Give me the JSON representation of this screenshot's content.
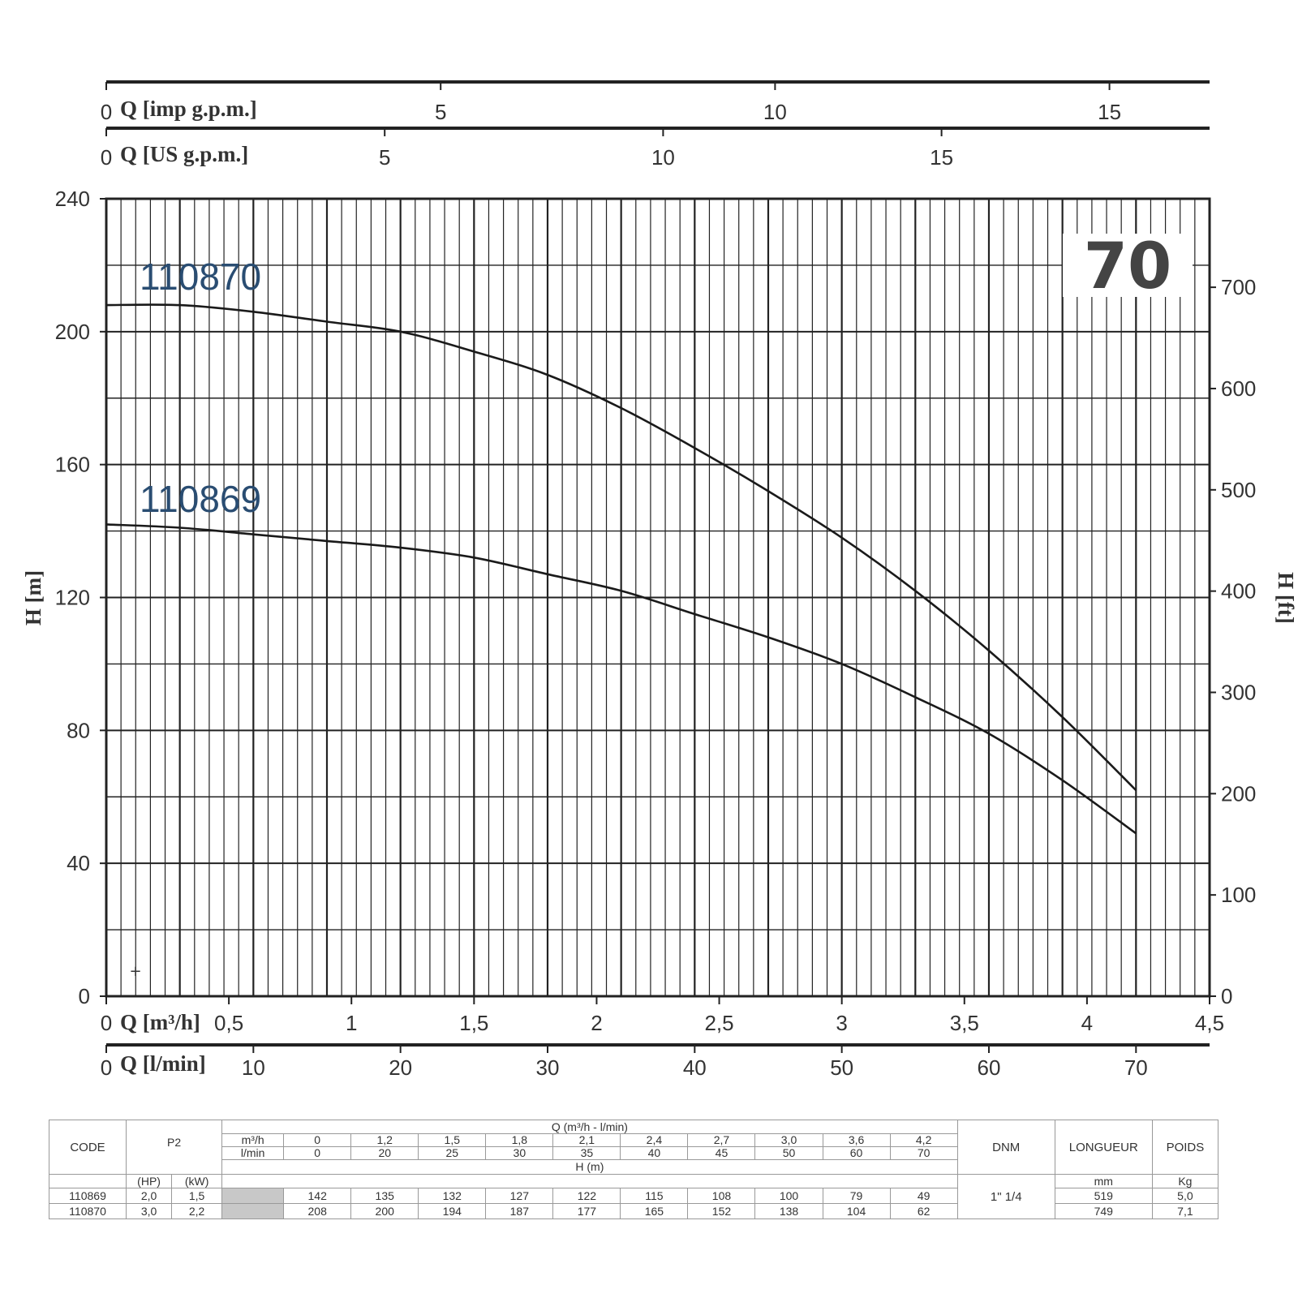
{
  "chart_data": {
    "type": "line",
    "badge": "70",
    "ylabel": "H [m]",
    "y2label": "H [ft]",
    "ylim": [
      0,
      240
    ],
    "y_ticks": [
      "0",
      "40",
      "80",
      "120",
      "160",
      "200",
      "240"
    ],
    "y2lim_ft": [
      0,
      787.4
    ],
    "y2_ticks": [
      "0",
      "100",
      "200",
      "300",
      "400",
      "500",
      "600",
      "700"
    ],
    "x_axes": [
      {
        "label": "Q [imp g.p.m.]",
        "zero": "0",
        "ticks": [
          "5",
          "10",
          "15"
        ],
        "values": [
          5,
          10,
          15
        ],
        "per_m3h": 3.666
      },
      {
        "label": "Q [US g.p.m.]",
        "zero": "0",
        "ticks": [
          "5",
          "10",
          "15"
        ],
        "values": [
          5,
          10,
          15
        ],
        "per_m3h": 4.403
      },
      {
        "label": "Q [m³/h]",
        "zero": "0",
        "ticks": [
          "0,5",
          "1",
          "1,5",
          "2",
          "2,5",
          "3",
          "3,5",
          "4",
          "4,5"
        ],
        "values": [
          0.5,
          1,
          1.5,
          2,
          2.5,
          3,
          3.5,
          4,
          4.5
        ],
        "per_m3h": 1
      },
      {
        "label": "Q [l/min]",
        "zero": "0",
        "ticks": [
          "10",
          "20",
          "30",
          "40",
          "50",
          "60",
          "70"
        ],
        "values": [
          10,
          20,
          30,
          40,
          50,
          60,
          70
        ],
        "per_m3h": 16.667
      }
    ],
    "xlim_m3h": [
      0,
      4.5
    ],
    "grid": true,
    "series": [
      {
        "name": "110870",
        "x": [
          0,
          0.3,
          0.6,
          0.9,
          1.2,
          1.5,
          1.8,
          2.1,
          2.4,
          2.7,
          3.0,
          3.3,
          3.6,
          3.9,
          4.2
        ],
        "y": [
          208,
          208,
          206,
          203,
          200,
          194,
          187,
          177,
          165,
          152,
          138,
          122,
          104,
          84,
          62
        ]
      },
      {
        "name": "110869",
        "x": [
          0,
          0.3,
          0.6,
          0.9,
          1.2,
          1.5,
          1.8,
          2.1,
          2.4,
          2.7,
          3.0,
          3.3,
          3.6,
          3.9,
          4.2
        ],
        "y": [
          142,
          141,
          139,
          137,
          135,
          132,
          127,
          122,
          115,
          108,
          100,
          90,
          79,
          65,
          49
        ]
      }
    ]
  },
  "table": {
    "h_code": "CODE",
    "h_p2": "P2",
    "h_q": "Q (m³/h - l/min)",
    "h_dnm": "DNM",
    "h_len": "LONGUEUR",
    "h_weight": "POIDS",
    "u_m3h": "m³/h",
    "u_lmin": "l/min",
    "u_hp": "(HP)",
    "u_kw": "(kW)",
    "u_h": "H (m)",
    "u_mm": "mm",
    "u_kg": "Kg",
    "q_m3h": [
      "0",
      "1,2",
      "1,5",
      "1,8",
      "2,1",
      "2,4",
      "2,7",
      "3,0",
      "3,6",
      "4,2"
    ],
    "q_lmin": [
      "0",
      "20",
      "25",
      "30",
      "35",
      "40",
      "45",
      "50",
      "60",
      "70"
    ],
    "dnm": "1\" 1/4",
    "rows": [
      {
        "code": "110869",
        "hp": "2,0",
        "kw": "1,5",
        "h": [
          "142",
          "135",
          "132",
          "127",
          "122",
          "115",
          "108",
          "100",
          "79",
          "49"
        ],
        "len": "519",
        "weight": "5,0"
      },
      {
        "code": "110870",
        "hp": "3,0",
        "kw": "2,2",
        "h": [
          "208",
          "200",
          "194",
          "187",
          "177",
          "165",
          "152",
          "138",
          "104",
          "62"
        ],
        "len": "749",
        "weight": "7,1"
      }
    ]
  }
}
